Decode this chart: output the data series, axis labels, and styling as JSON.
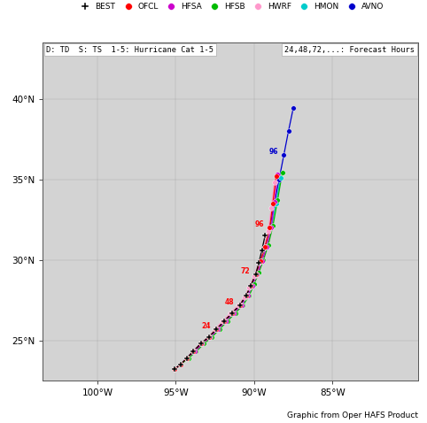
{
  "title_box": "D: TD  S: TS  1-5: Hurricane Cat 1-5",
  "title_right": "24,48,72,...: Forecast Hours",
  "subtitle": "Graphic from Oper HAFS Product",
  "legend_entries": [
    {
      "label": "BEST",
      "color": "#000000",
      "marker": "P"
    },
    {
      "label": "OFCL",
      "color": "#ff0000",
      "marker": "o"
    },
    {
      "label": "HFSA",
      "color": "#cc00cc",
      "marker": "o"
    },
    {
      "label": "HFSB",
      "color": "#00bb00",
      "marker": "o"
    },
    {
      "label": "HWRF",
      "color": "#ff99cc",
      "marker": "o"
    },
    {
      "label": "HMON",
      "color": "#00cccc",
      "marker": "o"
    },
    {
      "label": "AVNO",
      "color": "#0000cc",
      "marker": "o"
    }
  ],
  "xlim": [
    -103.5,
    -79.5
  ],
  "ylim": [
    22.5,
    43.5
  ],
  "xticks": [
    -100,
    -95,
    -90,
    -85
  ],
  "yticks": [
    25,
    30,
    35,
    40
  ],
  "tracks": {
    "BEST": {
      "color": "#000000",
      "lons": [
        -95.1,
        -94.7,
        -94.3,
        -93.9,
        -93.4,
        -92.9,
        -92.4,
        -91.9,
        -91.4,
        -90.9,
        -90.5,
        -90.2,
        -89.9,
        -89.7,
        -89.5,
        -89.3
      ],
      "lats": [
        23.2,
        23.5,
        23.9,
        24.3,
        24.8,
        25.2,
        25.7,
        26.2,
        26.7,
        27.2,
        27.8,
        28.4,
        29.1,
        29.8,
        30.6,
        31.5
      ],
      "marker": "P"
    },
    "OFCL": {
      "color": "#ff0000",
      "lons": [
        -95.1,
        -94.7,
        -94.3,
        -93.9,
        -93.4,
        -92.9,
        -92.4,
        -91.9,
        -91.4,
        -90.9,
        -90.5,
        -90.2,
        -89.9,
        -89.6,
        -89.3,
        -89.0,
        -88.8,
        -88.6
      ],
      "lats": [
        23.2,
        23.5,
        23.9,
        24.3,
        24.8,
        25.2,
        25.7,
        26.2,
        26.7,
        27.2,
        27.8,
        28.4,
        29.1,
        29.9,
        30.8,
        32.0,
        33.5,
        35.2
      ],
      "labels": [
        {
          "text": "24",
          "idx": 6
        },
        {
          "text": "48",
          "idx": 9
        },
        {
          "text": "72",
          "idx": 12
        },
        {
          "text": "96",
          "idx": 15
        }
      ],
      "marker": "o"
    },
    "HFSA": {
      "color": "#cc00cc",
      "lons": [
        -95.1,
        -94.7,
        -94.3,
        -93.8,
        -93.3,
        -92.8,
        -92.3,
        -91.8,
        -91.3,
        -90.8,
        -90.4,
        -90.1,
        -89.8,
        -89.5,
        -89.2,
        -88.9,
        -88.7,
        -88.5
      ],
      "lats": [
        23.2,
        23.5,
        23.9,
        24.3,
        24.8,
        25.2,
        25.7,
        26.2,
        26.7,
        27.2,
        27.8,
        28.4,
        29.1,
        29.9,
        30.8,
        32.0,
        33.6,
        35.3
      ],
      "labels": [],
      "marker": "o"
    },
    "HFSB": {
      "color": "#00bb00",
      "lons": [
        -95.1,
        -94.7,
        -94.2,
        -93.7,
        -93.2,
        -92.7,
        -92.2,
        -91.7,
        -91.2,
        -90.7,
        -90.3,
        -90.0,
        -89.7,
        -89.4,
        -89.1,
        -88.8,
        -88.5,
        -88.2
      ],
      "lats": [
        23.2,
        23.5,
        23.9,
        24.3,
        24.8,
        25.2,
        25.7,
        26.2,
        26.7,
        27.2,
        27.8,
        28.5,
        29.2,
        30.0,
        30.9,
        32.1,
        33.7,
        35.4
      ],
      "labels": [],
      "marker": "o"
    },
    "HWRF": {
      "color": "#ff99cc",
      "lons": [
        -95.1,
        -94.7,
        -94.3,
        -93.9,
        -93.4,
        -92.9,
        -92.5,
        -92.0,
        -91.5,
        -91.0,
        -90.6,
        -90.3,
        -90.0,
        -89.7,
        -89.4,
        -89.1,
        -88.9,
        -88.7
      ],
      "lats": [
        23.2,
        23.5,
        23.9,
        24.3,
        24.8,
        25.2,
        25.7,
        26.2,
        26.7,
        27.2,
        27.7,
        28.3,
        29.0,
        29.8,
        30.7,
        31.8,
        33.2,
        34.8
      ],
      "labels": [],
      "marker": "o"
    },
    "HMON": {
      "color": "#00cccc",
      "lons": [
        -95.1,
        -94.7,
        -94.3,
        -93.8,
        -93.3,
        -92.8,
        -92.3,
        -91.8,
        -91.3,
        -90.8,
        -90.4,
        -90.1,
        -89.8,
        -89.5,
        -89.2,
        -88.9,
        -88.6,
        -88.3
      ],
      "lats": [
        23.2,
        23.5,
        23.9,
        24.3,
        24.8,
        25.2,
        25.7,
        26.2,
        26.7,
        27.2,
        27.8,
        28.4,
        29.1,
        29.9,
        30.8,
        32.0,
        33.5,
        35.1
      ],
      "labels": [],
      "marker": "o"
    },
    "AVNO": {
      "color": "#0000cc",
      "lons": [
        -95.1,
        -94.7,
        -94.3,
        -93.9,
        -93.4,
        -92.9,
        -92.4,
        -91.9,
        -91.4,
        -90.9,
        -90.5,
        -90.2,
        -89.9,
        -89.6,
        -89.3,
        -89.0,
        -88.7,
        -88.4,
        -88.1,
        -87.8,
        -87.5
      ],
      "lats": [
        23.2,
        23.5,
        23.9,
        24.3,
        24.8,
        25.2,
        25.7,
        26.2,
        26.7,
        27.2,
        27.8,
        28.4,
        29.1,
        29.9,
        30.8,
        32.0,
        33.5,
        35.0,
        36.5,
        38.0,
        39.4
      ],
      "labels": [
        {
          "text": "96",
          "idx": 18
        }
      ],
      "marker": "o"
    }
  },
  "us_states_land_color": "#d3d3d3",
  "ocean_color": "#c5d8e8",
  "border_color": "#888888",
  "fig_bg": "#ffffff"
}
